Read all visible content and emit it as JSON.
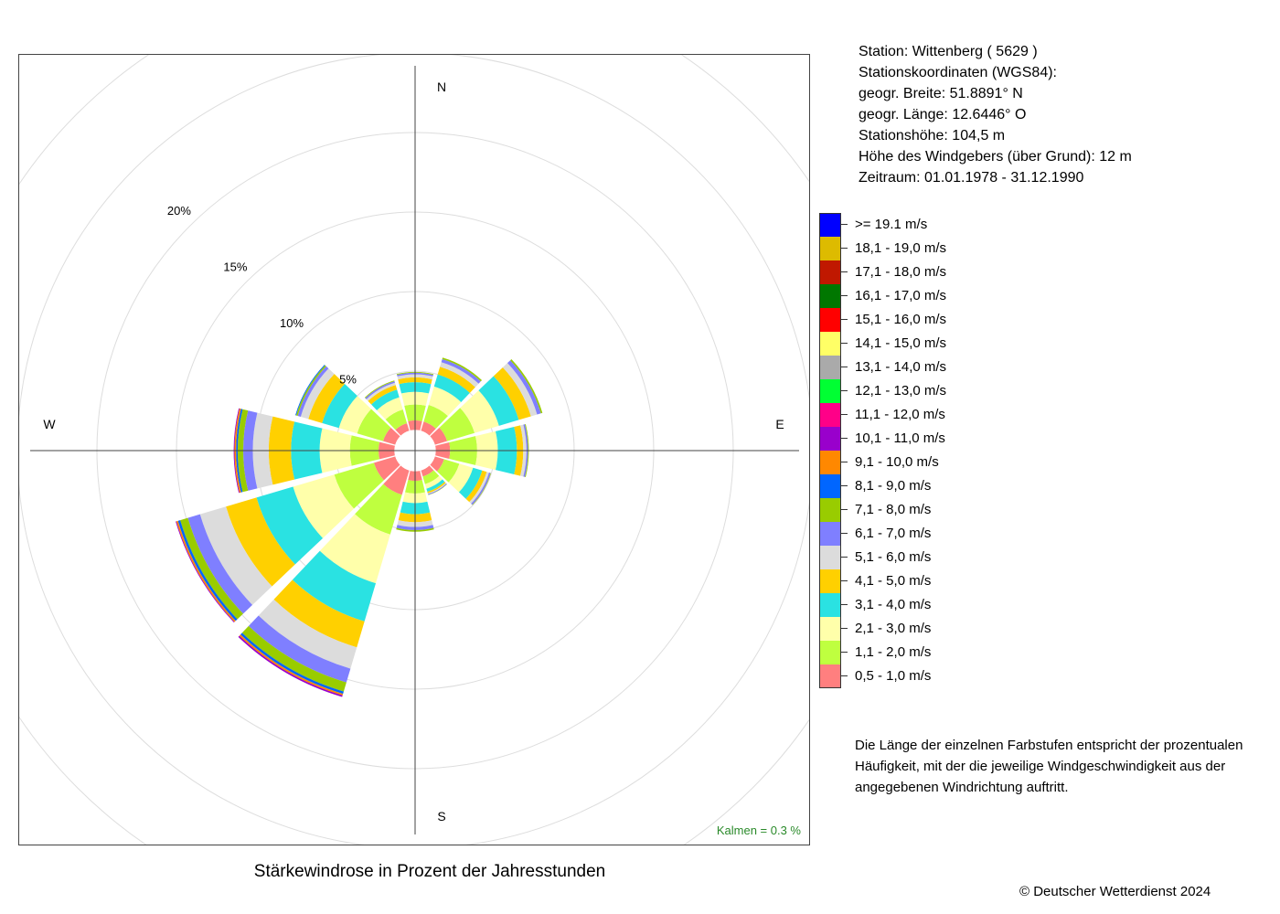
{
  "chart_data": {
    "type": "windrose",
    "title": "Stärkewindrose in Prozent der Jahresstunden",
    "direction_labels": [
      "N",
      "E",
      "S",
      "W"
    ],
    "radial_ticks": [
      {
        "value": 5,
        "label": "5%"
      },
      {
        "value": 10,
        "label": "10%"
      },
      {
        "value": 15,
        "label": "15%"
      },
      {
        "value": 20,
        "label": "20%"
      }
    ],
    "hole_radius": 1.3,
    "calm_label": "Kalmen  =  0.3 %",
    "directions_deg": [
      0,
      30,
      60,
      90,
      120,
      150,
      180,
      210,
      240,
      270,
      300,
      330
    ],
    "speed_classes": [
      {
        "label": "0,5 - 1,0 m/s",
        "color": "#FF7F7F"
      },
      {
        "label": "1,1 - 2,0 m/s",
        "color": "#BFFF3F"
      },
      {
        "label": "2,1 - 3,0 m/s",
        "color": "#FFFFAA"
      },
      {
        "label": "3,1 - 4,0 m/s",
        "color": "#2AE2E2"
      },
      {
        "label": "4,1 - 5,0 m/s",
        "color": "#FFD000"
      },
      {
        "label": "5,1 - 6,0 m/s",
        "color": "#DCDCDC"
      },
      {
        "label": "6,1 - 7,0 m/s",
        "color": "#7F7FFF"
      },
      {
        "label": "7,1 - 8,0 m/s",
        "color": "#99CC00"
      },
      {
        "label": "8,1 - 9,0 m/s",
        "color": "#0066FF"
      },
      {
        "label": "9,1 - 10,0 m/s",
        "color": "#FF8800"
      },
      {
        "label": "10,1 - 11,0 m/s",
        "color": "#9900CC"
      },
      {
        "label": "11,1 - 12,0 m/s",
        "color": "#FF0088"
      },
      {
        "label": "12,1 - 13,0 m/s",
        "color": "#00FF33"
      },
      {
        "label": "13,1 - 14,0 m/s",
        "color": "#AAAAAA"
      },
      {
        "label": "14,1 - 15,0 m/s",
        "color": "#FFFF66"
      },
      {
        "label": "15,1 - 16,0 m/s",
        "color": "#FF0000"
      },
      {
        "label": "16,1 - 17,0 m/s",
        "color": "#007700"
      },
      {
        "label": "17,1 - 18,0 m/s",
        "color": "#C01800"
      },
      {
        "label": "18,1 - 19,0 m/s",
        "color": "#DDBB00"
      },
      {
        "label": ">= 19.1 m/s",
        "color": "#0000FF"
      }
    ],
    "series": [
      {
        "direction": "N",
        "deg": 0,
        "values": [
          0.6,
          1.0,
          0.8,
          0.6,
          0.3,
          0.2,
          0.1,
          0.05
        ]
      },
      {
        "direction": "30",
        "deg": 30,
        "values": [
          0.6,
          1.1,
          1.2,
          0.8,
          0.5,
          0.3,
          0.2,
          0.1
        ]
      },
      {
        "direction": "60",
        "deg": 60,
        "values": [
          0.8,
          1.8,
          1.6,
          1.3,
          0.8,
          0.4,
          0.25,
          0.1
        ]
      },
      {
        "direction": "E",
        "deg": 90,
        "values": [
          0.9,
          1.7,
          1.3,
          1.2,
          0.4,
          0.2,
          0.1,
          0.05
        ]
      },
      {
        "direction": "120",
        "deg": 120,
        "values": [
          0.6,
          1.0,
          0.9,
          0.6,
          0.3,
          0.15,
          0.1,
          0.03
        ]
      },
      {
        "direction": "150",
        "deg": 150,
        "values": [
          0.4,
          0.5,
          0.3,
          0.2,
          0.1,
          0.05,
          0.05,
          0.02
        ]
      },
      {
        "direction": "S",
        "deg": 180,
        "values": [
          0.6,
          0.8,
          0.6,
          0.7,
          0.5,
          0.3,
          0.2,
          0.1
        ]
      },
      {
        "direction": "210",
        "deg": 210,
        "values": [
          1.6,
          2.6,
          3.2,
          2.5,
          1.7,
          1.4,
          0.9,
          0.6,
          0.15,
          0.1,
          0.1
        ]
      },
      {
        "direction": "240",
        "deg": 240,
        "values": [
          1.4,
          2.6,
          2.7,
          2.4,
          2.0,
          1.7,
          0.8,
          0.5,
          0.15,
          0.1,
          0.05
        ]
      },
      {
        "direction": "W",
        "deg": 270,
        "values": [
          1.0,
          1.8,
          1.9,
          1.8,
          1.4,
          1.0,
          0.6,
          0.35,
          0.1,
          0.1,
          0.05
        ]
      },
      {
        "direction": "300",
        "deg": 300,
        "values": [
          0.8,
          1.7,
          1.2,
          1.1,
          0.9,
          0.5,
          0.2,
          0.1,
          0.05
        ]
      },
      {
        "direction": "330",
        "deg": 330,
        "values": [
          0.5,
          0.9,
          0.8,
          0.5,
          0.3,
          0.15,
          0.1,
          0.05
        ]
      }
    ]
  },
  "station": {
    "station_line": "Station:  Wittenberg  ( 5629 )",
    "coords_heading": "Stationskoordinaten (WGS84):",
    "lat_line": "geogr. Breite: 51.8891° N",
    "lon_line": "geogr. Länge: 12.6446° O",
    "height_line": "Stationshöhe: 104,5 m",
    "anemometer_line": "Höhe des Windgebers (über Grund): 12 m",
    "period_line": "Zeitraum: 01.01.1978 - 31.12.1990"
  },
  "note": "Die Länge der einzelnen Farbstufen entspricht der prozentualen Häufigkeit, mit der die jeweilige Windgeschwindigkeit aus der angegebenen Windrichtung auftritt.",
  "copyright": "© Deutscher Wetterdienst  2024"
}
